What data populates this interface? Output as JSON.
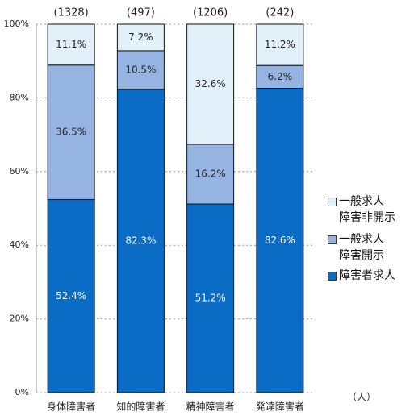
{
  "chart_data": {
    "type": "stacked_bar",
    "categories": [
      "身体障害者",
      "知的障害者",
      "精神障害者",
      "発達障害者"
    ],
    "category_annotations": [
      "(1328)",
      "(497)",
      "(1206)",
      "(242)"
    ],
    "unit_label": "（人）",
    "series": [
      {
        "name": "障害者求人",
        "color": "#0b6cc5",
        "values": [
          52.4,
          82.3,
          51.2,
          82.6
        ],
        "value_labels": [
          "52.4%",
          "82.3%",
          "51.2%",
          "82.6%"
        ]
      },
      {
        "name": "一般求人\n障害開示",
        "color": "#95b4e2",
        "values": [
          36.5,
          10.5,
          16.2,
          6.2
        ],
        "value_labels": [
          "36.5%",
          "10.5%",
          "16.2%",
          "6.2%"
        ]
      },
      {
        "name": "一般求人\n障害非開示",
        "color": "#e2f1f9",
        "values": [
          11.1,
          7.2,
          32.6,
          11.2
        ],
        "value_labels": [
          "11.1%",
          "7.2%",
          "32.6%",
          "11.2%"
        ]
      }
    ],
    "ylim": [
      0,
      100
    ],
    "yticks": [
      {
        "value": 0,
        "label": "0%"
      },
      {
        "value": 20,
        "label": "20%"
      },
      {
        "value": 40,
        "label": "40%"
      },
      {
        "value": 60,
        "label": "60%"
      },
      {
        "value": 80,
        "label": "80%"
      },
      {
        "value": 100,
        "label": "100%"
      }
    ],
    "grid": true
  }
}
